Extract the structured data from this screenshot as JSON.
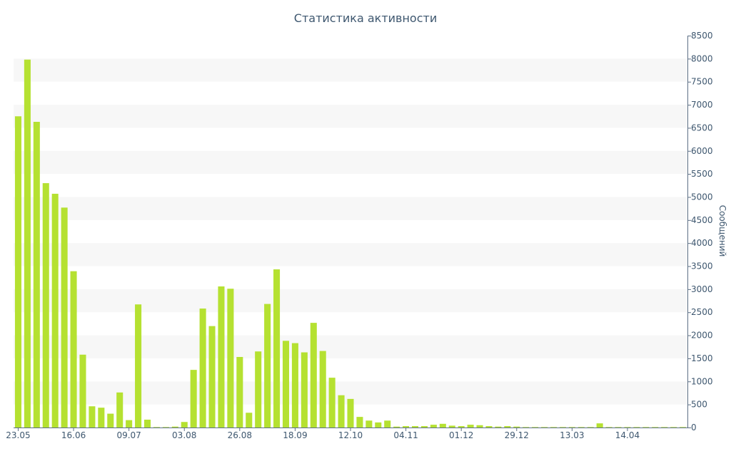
{
  "chart_data": {
    "type": "bar",
    "title": "Статистика активности",
    "xlabel": "",
    "ylabel": "Сообщений",
    "ylim": [
      0,
      8500
    ],
    "ytick_step": 500,
    "y_axis_position": "right",
    "grid": "alternating-bands",
    "bar_color": "#b5e131",
    "text_color": "#3e576f",
    "values": [
      6750,
      7980,
      6630,
      5300,
      5070,
      4770,
      3390,
      1580,
      460,
      430,
      300,
      760,
      160,
      2670,
      170,
      10,
      10,
      20,
      120,
      1250,
      2580,
      2200,
      3060,
      3010,
      1530,
      320,
      1650,
      2680,
      3430,
      1880,
      1830,
      1630,
      2270,
      1660,
      1080,
      700,
      620,
      230,
      150,
      110,
      150,
      20,
      30,
      30,
      30,
      60,
      80,
      40,
      30,
      60,
      50,
      30,
      20,
      30,
      20,
      10,
      10,
      10,
      10,
      10,
      10,
      10,
      10,
      90,
      10,
      10,
      10,
      10,
      10,
      10,
      10,
      10,
      10
    ],
    "x_tick_labels": [
      {
        "index": 0,
        "label": "23.05"
      },
      {
        "index": 6,
        "label": "16.06"
      },
      {
        "index": 12,
        "label": "09.07"
      },
      {
        "index": 18,
        "label": "03.08"
      },
      {
        "index": 24,
        "label": "26.08"
      },
      {
        "index": 30,
        "label": "18.09"
      },
      {
        "index": 36,
        "label": "12.10"
      },
      {
        "index": 42,
        "label": "04.11"
      },
      {
        "index": 48,
        "label": "01.12"
      },
      {
        "index": 54,
        "label": "29.12"
      },
      {
        "index": 60,
        "label": "13.03"
      },
      {
        "index": 66,
        "label": "14.04"
      }
    ]
  }
}
